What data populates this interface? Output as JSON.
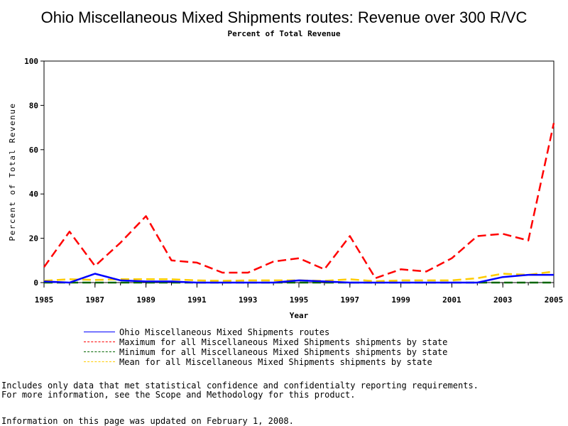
{
  "chart_data": {
    "type": "line",
    "title": "Ohio Miscellaneous Mixed Shipments routes: Revenue over 300 R/VC",
    "subtitle": "Percent of Total Revenue",
    "xlabel": "Year",
    "ylabel": "Percent of Total Revenue",
    "xlim": [
      1985,
      2005
    ],
    "ylim": [
      0,
      100
    ],
    "x_ticks": [
      "1985",
      "1987",
      "1989",
      "1991",
      "1993",
      "1995",
      "1997",
      "1999",
      "2001",
      "2003",
      "2005"
    ],
    "y_ticks": [
      "0",
      "20",
      "40",
      "60",
      "80",
      "100"
    ],
    "x": [
      1985,
      1986,
      1987,
      1988,
      1989,
      1990,
      1991,
      1992,
      1993,
      1994,
      1995,
      1996,
      1997,
      1998,
      1999,
      2000,
      2001,
      2002,
      2003,
      2004,
      2005
    ],
    "series": [
      {
        "name": "Ohio Miscellaneous Mixed Shipments routes",
        "color": "#0000ff",
        "style": "solid",
        "values": [
          0.5,
          0,
          4,
          1,
          0.5,
          0.5,
          0,
          0,
          0,
          0,
          1,
          0.5,
          0,
          0,
          0,
          0,
          0,
          0,
          2.5,
          3.5,
          3.5
        ]
      },
      {
        "name": "Maximum for all Miscellaneous Mixed Shipments shipments by state",
        "color": "#ff0000",
        "style": "dashed",
        "values": [
          7,
          23,
          7.5,
          18,
          30,
          10,
          9,
          4.5,
          4.5,
          9.5,
          11,
          6,
          21,
          2,
          6,
          5,
          11,
          21,
          22,
          19,
          72
        ]
      },
      {
        "name": "Minimum for all Miscellaneous Mixed Shipments shipments by state",
        "color": "#006400",
        "style": "dashed",
        "values": [
          0,
          0,
          0,
          0,
          0,
          0,
          0,
          0,
          0,
          0,
          0,
          0,
          0,
          0,
          0,
          0,
          0,
          0,
          0,
          0,
          0
        ]
      },
      {
        "name": "Mean for all Miscellaneous Mixed Shipments shipments by state",
        "color": "#ffcc00",
        "style": "dashed",
        "values": [
          0.8,
          1.5,
          1.2,
          1.5,
          1.5,
          1.5,
          1,
          0.8,
          1,
          1,
          1,
          0.8,
          1.5,
          0.6,
          1,
          1,
          1,
          2,
          4,
          3.5,
          5
        ]
      }
    ],
    "grid": false,
    "legend": "bottom"
  },
  "notes": {
    "line1": "Includes only data that met statistical confidence and confidentialty reporting requirements.",
    "line2": "For more information, see the Scope and Methodology for this product.",
    "line3": "Information on this page was updated on February 1, 2008."
  }
}
